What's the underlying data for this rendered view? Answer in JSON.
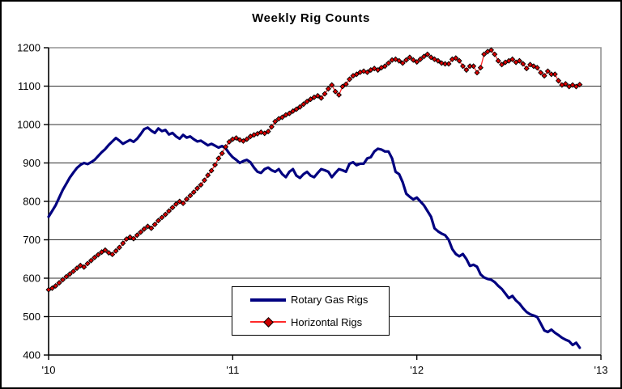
{
  "chart_data": {
    "type": "line",
    "title": "Weekly Rig Counts",
    "xlabel": "",
    "ylabel": "",
    "grid": true,
    "legend_position": "bottom-center-box",
    "x_axis": {
      "tick_labels": [
        "'10",
        "'11",
        "'12",
        "'13"
      ],
      "tick_weeks": [
        0,
        52,
        104,
        156
      ],
      "total_weeks": 156
    },
    "y_axis": {
      "min": 400,
      "max": 1200,
      "step": 100,
      "tick_labels": [
        "400",
        "500",
        "600",
        "700",
        "800",
        "900",
        "1000",
        "1100",
        "1200"
      ]
    },
    "colors": {
      "rotary_line": "#000080",
      "horizontal_line": "#ff2a2a",
      "marker_fill": "#e00000",
      "marker_stroke": "#000000",
      "gridline": "#303030",
      "plot_border": "#949494",
      "axis": "#000000"
    },
    "series": [
      {
        "name": "Rotary Gas Rigs",
        "marker": "none",
        "x_start_week": 0,
        "x_step_weeks": 1,
        "values": [
          760,
          775,
          790,
          810,
          830,
          846,
          862,
          875,
          887,
          895,
          900,
          897,
          902,
          908,
          918,
          928,
          936,
          947,
          956,
          965,
          958,
          950,
          955,
          960,
          955,
          963,
          975,
          988,
          992,
          984,
          978,
          990,
          983,
          986,
          974,
          978,
          969,
          963,
          973,
          966,
          969,
          962,
          956,
          958,
          952,
          946,
          950,
          945,
          940,
          944,
          938,
          925,
          915,
          908,
          900,
          905,
          908,
          902,
          888,
          877,
          874,
          884,
          888,
          881,
          877,
          884,
          871,
          863,
          877,
          884,
          867,
          861,
          871,
          877,
          867,
          863,
          874,
          884,
          881,
          877,
          863,
          874,
          884,
          881,
          877,
          898,
          902,
          894,
          898,
          898,
          912,
          915,
          930,
          937,
          935,
          930,
          930,
          912,
          877,
          871,
          850,
          820,
          812,
          805,
          810,
          800,
          790,
          775,
          760,
          730,
          722,
          716,
          712,
          700,
          676,
          663,
          657,
          663,
          650,
          632,
          635,
          630,
          610,
          602,
          598,
          596,
          590,
          580,
          572,
          560,
          548,
          554,
          542,
          534,
          522,
          512,
          506,
          503,
          499,
          482,
          464,
          460,
          466,
          458,
          452,
          445,
          440,
          436,
          426,
          432,
          419
        ]
      },
      {
        "name": "Horizontal Rigs",
        "marker": "diamond",
        "x_start_week": 0,
        "x_step_weeks": 1,
        "values": [
          570,
          574,
          580,
          588,
          596,
          604,
          611,
          618,
          626,
          633,
          629,
          638,
          646,
          654,
          661,
          668,
          673,
          666,
          662,
          671,
          680,
          691,
          702,
          707,
          703,
          712,
          720,
          728,
          735,
          730,
          740,
          750,
          758,
          766,
          775,
          784,
          793,
          800,
          795,
          806,
          815,
          824,
          834,
          843,
          855,
          868,
          880,
          895,
          912,
          925,
          942,
          955,
          962,
          965,
          960,
          957,
          962,
          969,
          973,
          976,
          980,
          977,
          982,
          994,
          1008,
          1015,
          1019,
          1025,
          1029,
          1035,
          1040,
          1046,
          1053,
          1060,
          1066,
          1071,
          1075,
          1069,
          1080,
          1093,
          1103,
          1086,
          1077,
          1099,
          1105,
          1118,
          1127,
          1131,
          1136,
          1139,
          1136,
          1142,
          1146,
          1142,
          1148,
          1152,
          1160,
          1168,
          1170,
          1166,
          1160,
          1168,
          1175,
          1168,
          1163,
          1170,
          1177,
          1183,
          1175,
          1170,
          1166,
          1160,
          1158,
          1158,
          1170,
          1173,
          1166,
          1152,
          1142,
          1152,
          1152,
          1135,
          1148,
          1183,
          1190,
          1194,
          1183,
          1166,
          1156,
          1162,
          1166,
          1170,
          1162,
          1166,
          1158,
          1146,
          1156,
          1152,
          1148,
          1135,
          1127,
          1139,
          1131,
          1131,
          1114,
          1103,
          1106,
          1099,
          1103,
          1099,
          1104
        ]
      }
    ]
  }
}
